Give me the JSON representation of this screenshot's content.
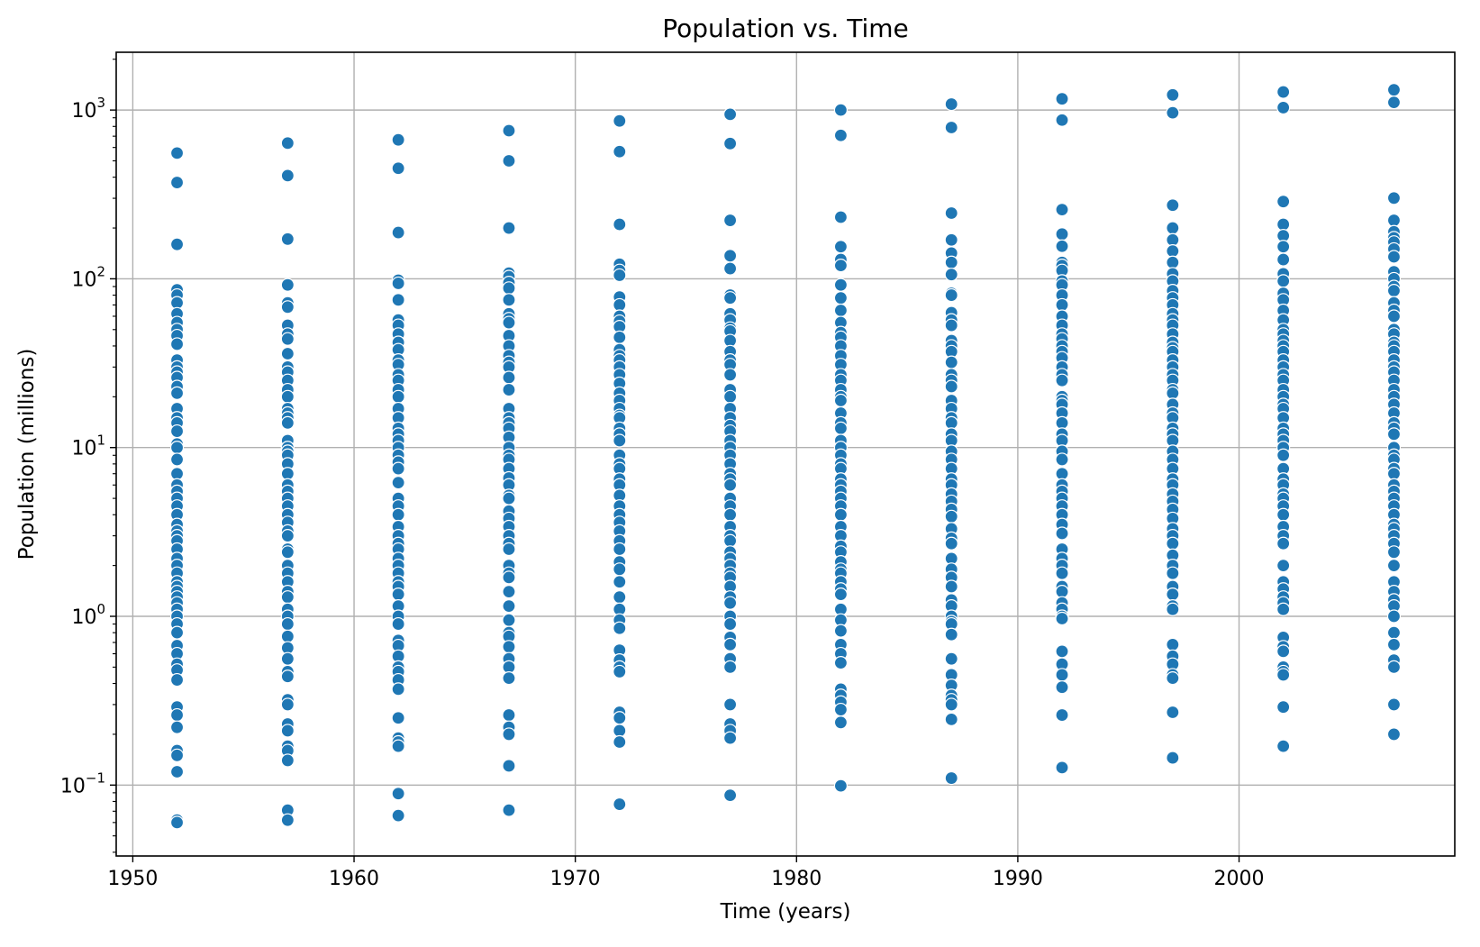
{
  "chart_data": {
    "type": "scatter",
    "title": "Population vs. Time",
    "xlabel": "Time (years)",
    "ylabel": "Population (millions)",
    "yscale": "log",
    "xlim": [
      1949.25,
      2009.75
    ],
    "ylim": [
      0.038,
      2200
    ],
    "grid": true,
    "marker_color": "#1f77b4",
    "marker_edge_color": "#ffffff",
    "x_ticks": [
      {
        "value": 1950,
        "label": "1950"
      },
      {
        "value": 1960,
        "label": "1960"
      },
      {
        "value": 1970,
        "label": "1970"
      },
      {
        "value": 1980,
        "label": "1980"
      },
      {
        "value": 1990,
        "label": "1990"
      },
      {
        "value": 2000,
        "label": "2000"
      }
    ],
    "y_ticks": [
      {
        "value": 0.1,
        "base": "10",
        "exp": "−1"
      },
      {
        "value": 1,
        "base": "10",
        "exp": "0"
      },
      {
        "value": 10,
        "base": "10",
        "exp": "1"
      },
      {
        "value": 100,
        "base": "10",
        "exp": "2"
      },
      {
        "value": 1000,
        "base": "10",
        "exp": "3"
      }
    ],
    "series": [
      {
        "x": 1952,
        "values": [
          556,
          372,
          160,
          86,
          80,
          72,
          62,
          55,
          50,
          46,
          41,
          33,
          30,
          28,
          26,
          23,
          21,
          17,
          15,
          14,
          12.5,
          10.5,
          10,
          8.5,
          7,
          6,
          5.5,
          5,
          4.5,
          4,
          3.5,
          3.2,
          3,
          2.8,
          2.5,
          2.2,
          2,
          1.8,
          1.6,
          1.5,
          1.4,
          1.3,
          1.2,
          1.1,
          1.0,
          0.9,
          0.8,
          0.67,
          0.6,
          0.52,
          0.48,
          0.42,
          0.29,
          0.26,
          0.22,
          0.16,
          0.15,
          0.12,
          0.062,
          0.06
        ]
      },
      {
        "x": 1957,
        "values": [
          637,
          409,
          172,
          92,
          72,
          68,
          53,
          47,
          44,
          36,
          30,
          28,
          25,
          22,
          20,
          17,
          16,
          15,
          14,
          11,
          10,
          9.5,
          9,
          8,
          7,
          6,
          5.5,
          5,
          4.5,
          4,
          3.6,
          3.2,
          3,
          2.5,
          2.4,
          2,
          1.8,
          1.6,
          1.4,
          1.3,
          1.1,
          1.0,
          0.9,
          0.76,
          0.65,
          0.56,
          0.47,
          0.44,
          0.32,
          0.3,
          0.23,
          0.21,
          0.17,
          0.16,
          0.14,
          0.071,
          0.062
        ]
      },
      {
        "x": 1962,
        "values": [
          666,
          452,
          188,
          98,
          94,
          75,
          57,
          53,
          47,
          42,
          38,
          33,
          31,
          27,
          25,
          22,
          20,
          17,
          15,
          13,
          12,
          11,
          10,
          9,
          8.2,
          7.5,
          6.2,
          5,
          4.5,
          4,
          3.4,
          3,
          2.7,
          2.5,
          2.2,
          2,
          1.8,
          1.6,
          1.5,
          1.35,
          1.15,
          1.0,
          0.9,
          0.72,
          0.67,
          0.58,
          0.5,
          0.47,
          0.42,
          0.37,
          0.25,
          0.19,
          0.18,
          0.17,
          0.089,
          0.066
        ]
      },
      {
        "x": 1967,
        "values": [
          755,
          500,
          200,
          108,
          103,
          95,
          88,
          75,
          62,
          58,
          55,
          46,
          40,
          35,
          32,
          30,
          26,
          22,
          17,
          15,
          14,
          13,
          11.5,
          10,
          9,
          8.5,
          7.5,
          6.6,
          6,
          5.2,
          5,
          4.2,
          3.8,
          3.4,
          3,
          2.7,
          2.5,
          2,
          1.8,
          1.7,
          1.4,
          1.15,
          0.95,
          0.8,
          0.76,
          0.66,
          0.56,
          0.5,
          0.43,
          0.26,
          0.22,
          0.2,
          0.13,
          0.071
        ]
      },
      {
        "x": 1972,
        "values": [
          862,
          567,
          210,
          122,
          112,
          105,
          78,
          70,
          60,
          56,
          52,
          45,
          38,
          35,
          33,
          30,
          27,
          24,
          21,
          19,
          17,
          15.5,
          15,
          13,
          12,
          11,
          9,
          8,
          7.5,
          6.5,
          6,
          5.2,
          4.5,
          4,
          3.6,
          3.2,
          2.8,
          2.5,
          2.1,
          1.9,
          1.6,
          1.3,
          1.1,
          0.95,
          0.85,
          0.63,
          0.55,
          0.5,
          0.47,
          0.27,
          0.25,
          0.21,
          0.18,
          0.077
        ]
      },
      {
        "x": 1977,
        "values": [
          943,
          633,
          222,
          137,
          115,
          80,
          77,
          62,
          57,
          51,
          49,
          43,
          37,
          33,
          31,
          27,
          22,
          20,
          17,
          15,
          13.5,
          12.5,
          11,
          10,
          9,
          8,
          7,
          6.5,
          6,
          5,
          4.5,
          4,
          3.4,
          3,
          2.8,
          2.4,
          2.2,
          2,
          1.8,
          1.7,
          1.5,
          1.3,
          1.2,
          1.0,
          0.9,
          0.75,
          0.68,
          0.56,
          0.5,
          0.3,
          0.23,
          0.21,
          0.19,
          0.087
        ]
      },
      {
        "x": 1982,
        "values": [
          1000,
          708,
          232,
          155,
          130,
          120,
          92,
          77,
          65,
          55,
          48,
          45,
          40,
          35,
          31,
          27,
          25,
          22,
          20,
          19,
          16,
          14,
          13,
          11,
          10,
          9,
          8,
          7.5,
          6.5,
          6,
          5.5,
          5,
          4.5,
          4,
          3.4,
          3,
          2.6,
          2.4,
          2.1,
          1.9,
          1.8,
          1.6,
          1.45,
          1.35,
          1.1,
          0.95,
          0.82,
          0.68,
          0.6,
          0.53,
          0.37,
          0.34,
          0.31,
          0.28,
          0.235,
          0.099
        ]
      },
      {
        "x": 1987,
        "values": [
          1084,
          788,
          245,
          170,
          142,
          125,
          106,
          82,
          80,
          63,
          57,
          53,
          43,
          40,
          37,
          32,
          27,
          25,
          23,
          19,
          17,
          15,
          14,
          12,
          11,
          9.5,
          8.5,
          7.5,
          6.5,
          6,
          5.3,
          4.8,
          4.3,
          3.9,
          3.3,
          2.9,
          2.7,
          2.2,
          1.9,
          1.7,
          1.5,
          1.25,
          1.15,
          1.0,
          0.93,
          0.9,
          0.78,
          0.56,
          0.45,
          0.39,
          0.34,
          0.32,
          0.3,
          0.245,
          0.11
        ]
      },
      {
        "x": 1992,
        "values": [
          1165,
          872,
          257,
          184,
          156,
          125,
          120,
          112,
          97,
          92,
          80,
          70,
          60,
          53,
          47,
          44,
          40,
          37,
          34,
          30,
          27,
          25,
          20,
          19,
          18,
          16,
          14,
          12,
          11,
          9.5,
          8.5,
          7,
          6,
          5.5,
          5,
          4.5,
          4,
          3.5,
          3.1,
          2.5,
          2.2,
          2,
          1.8,
          1.5,
          1.4,
          1.2,
          1.1,
          1.0,
          0.97,
          0.62,
          0.52,
          0.45,
          0.38,
          0.26,
          0.127
        ]
      },
      {
        "x": 1997,
        "values": [
          1230,
          964,
          273,
          200,
          170,
          146,
          125,
          107,
          97,
          85,
          77,
          70,
          62,
          57,
          53,
          47,
          42,
          39,
          37,
          33,
          30,
          27,
          25,
          22,
          21,
          18,
          16,
          15,
          13,
          12,
          11,
          9.5,
          8.5,
          7.5,
          6.5,
          6,
          5.3,
          4.8,
          4.3,
          3.8,
          3.3,
          3,
          2.7,
          2.3,
          2,
          1.8,
          1.5,
          1.35,
          1.15,
          1.1,
          0.68,
          0.58,
          0.52,
          0.45,
          0.43,
          0.27,
          0.145
        ]
      },
      {
        "x": 2002,
        "values": [
          1280,
          1034,
          287,
          210,
          180,
          155,
          130,
          107,
          97,
          82,
          75,
          65,
          57,
          50,
          47,
          43,
          40,
          37,
          33,
          30,
          27,
          25,
          22,
          20,
          18,
          17,
          15,
          13,
          12,
          11,
          10,
          9,
          7.5,
          6.5,
          6,
          5.3,
          5,
          4.5,
          4,
          3.4,
          3,
          2.7,
          2,
          1.6,
          1.45,
          1.3,
          1.2,
          1.1,
          0.75,
          0.66,
          0.62,
          0.5,
          0.47,
          0.45,
          0.29,
          0.17
        ]
      },
      {
        "x": 2007,
        "values": [
          1318,
          1110,
          301,
          222,
          190,
          175,
          165,
          150,
          135,
          110,
          100,
          90,
          85,
          72,
          65,
          60,
          50,
          47,
          42,
          40,
          37,
          33,
          30,
          28,
          25,
          22,
          20,
          18,
          16,
          14,
          13,
          12,
          10,
          9,
          8.5,
          7.5,
          7,
          6,
          5.5,
          5,
          4.5,
          4,
          3.5,
          3.3,
          3,
          2.7,
          2.4,
          2,
          1.6,
          1.4,
          1.25,
          1.15,
          1.0,
          0.8,
          0.68,
          0.55,
          0.5,
          0.3,
          0.2
        ]
      }
    ]
  }
}
